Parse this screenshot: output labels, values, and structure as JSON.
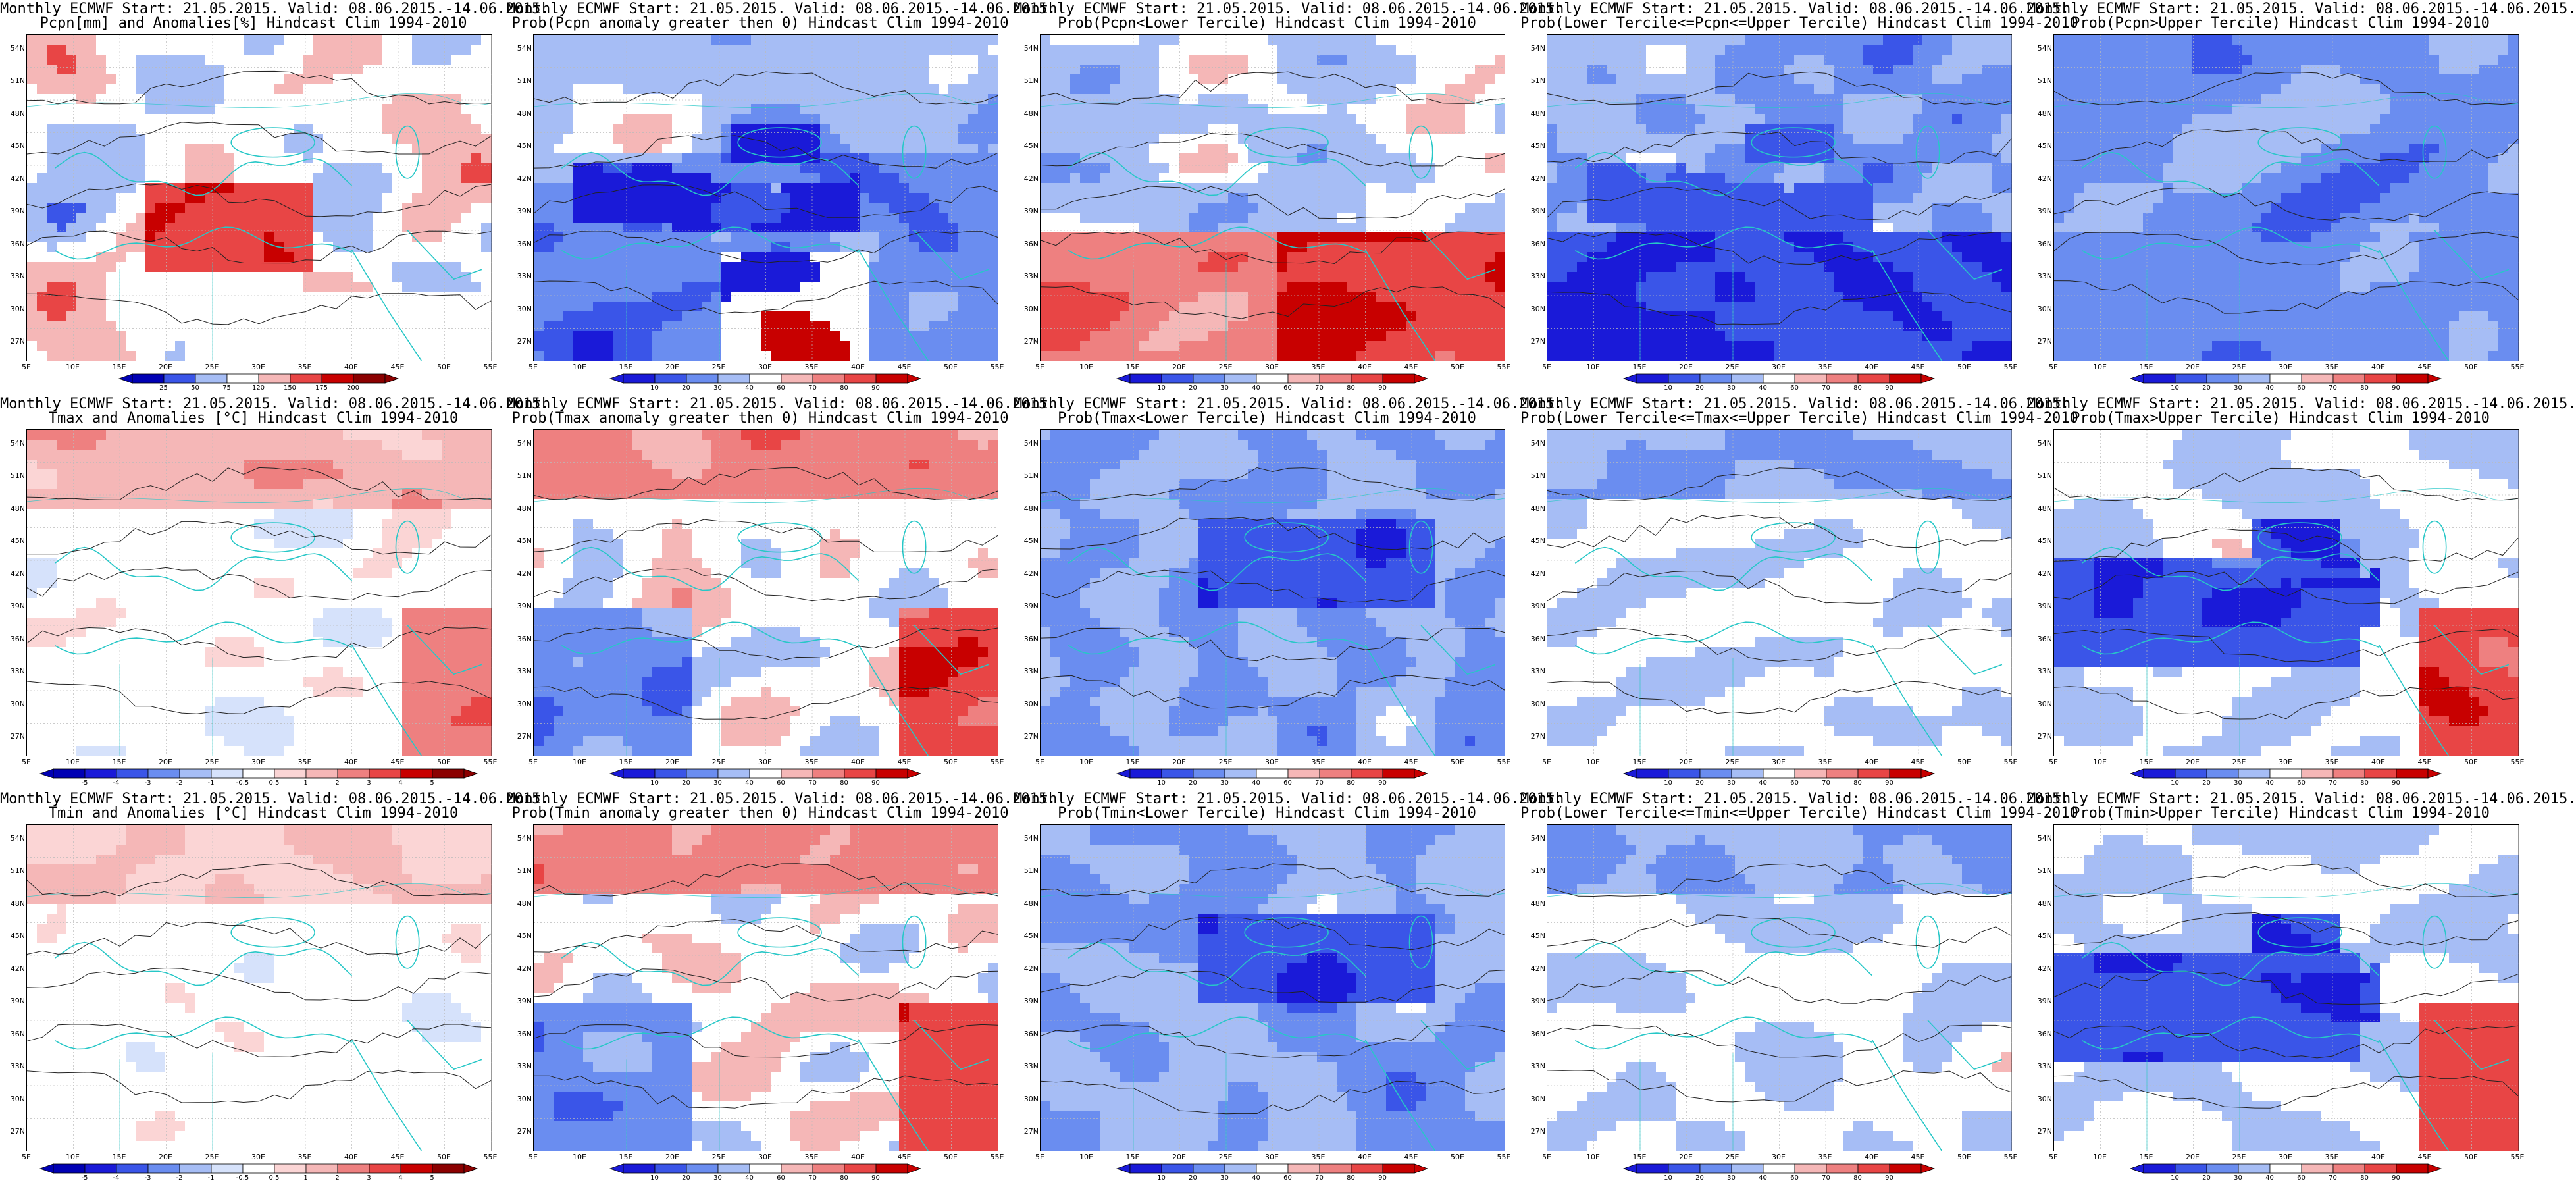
{
  "figure": {
    "panels": [
      {
        "row": 0,
        "col": 0,
        "line1": "Monthly ECMWF Start: 21.05.2015. Valid: 08.06.2015.-14.06.2015.",
        "line2": "Pcpn[mm] and Anomalies[%] Hindcast Clim 1994-2010",
        "field": "precip_anom",
        "colorbar": "pcp"
      },
      {
        "row": 0,
        "col": 1,
        "line1": "Monthly ECMWF Start: 21.05.2015. Valid: 08.06.2015.-14.06.2015.",
        "line2": "Prob(Pcpn anomaly greater then 0) Hindcast Clim 1994-2010",
        "field": "prob_pcp_pos",
        "colorbar": "prob"
      },
      {
        "row": 0,
        "col": 2,
        "line1": "Monthly ECMWF Start: 21.05.2015. Valid: 08.06.2015.-14.06.2015.",
        "line2": "Prob(Pcpn<Lower Tercile) Hindcast Clim 1994-2010",
        "field": "prob_pcp_low",
        "colorbar": "prob"
      },
      {
        "row": 0,
        "col": 3,
        "line1": "Monthly ECMWF Start: 21.05.2015. Valid: 08.06.2015.-14.06.2015.",
        "line2": "Prob(Lower Tercile<=Pcpn<=Upper Tercile) Hindcast Clim 1994-2010",
        "field": "prob_pcp_mid",
        "colorbar": "prob"
      },
      {
        "row": 0,
        "col": 4,
        "line1": "Monthly ECMWF Start: 21.05.2015. Valid: 08.06.2015.-14.06.2015.",
        "line2": "Prob(Pcpn>Upper Tercile) Hindcast Clim 1994-2010",
        "field": "prob_pcp_up",
        "colorbar": "prob"
      },
      {
        "row": 1,
        "col": 0,
        "line1": "Monthly ECMWF Start: 21.05.2015. Valid: 08.06.2015.-14.06.2015.",
        "line2": "Tmax and Anomalies [°C] Hindcast Clim 1994-2010",
        "field": "temp_anom_warm",
        "colorbar": "temp"
      },
      {
        "row": 1,
        "col": 1,
        "line1": "Monthly ECMWF Start: 21.05.2015. Valid: 08.06.2015.-14.06.2015.",
        "line2": "Prob(Tmax anomaly greater then 0) Hindcast Clim 1994-2010",
        "field": "prob_warm_mixed",
        "colorbar": "prob"
      },
      {
        "row": 1,
        "col": 2,
        "line1": "Monthly ECMWF Start: 21.05.2015. Valid: 08.06.2015.-14.06.2015.",
        "line2": "Prob(Tmax<Lower Tercile) Hindcast Clim 1994-2010",
        "field": "prob_cold",
        "colorbar": "prob"
      },
      {
        "row": 1,
        "col": 3,
        "line1": "Monthly ECMWF Start: 21.05.2015. Valid: 08.06.2015.-14.06.2015.",
        "line2": "Prob(Lower Tercile<=Tmax<=Upper Tercile) Hindcast Clim 1994-2010",
        "field": "prob_mid_light",
        "colorbar": "prob"
      },
      {
        "row": 1,
        "col": 4,
        "line1": "Monthly ECMWF Start: 21.05.2015. Valid: 08.06.2015.-14.06.2015.",
        "line2": "Prob(Tmax>Upper Tercile) Hindcast Clim 1994-2010",
        "field": "prob_up_temp",
        "colorbar": "prob"
      },
      {
        "row": 2,
        "col": 0,
        "line1": "Monthly ECMWF Start: 21.05.2015. Valid: 08.06.2015.-14.06.2015.",
        "line2": "Tmin and Anomalies [°C] Hindcast Clim 1994-2010",
        "field": "temp_anom_mild",
        "colorbar": "temp"
      },
      {
        "row": 2,
        "col": 1,
        "line1": "Monthly ECMWF Start: 21.05.2015. Valid: 08.06.2015.-14.06.2015.",
        "line2": "Prob(Tmin anomaly greater then 0) Hindcast Clim 1994-2010",
        "field": "prob_warm_mixed",
        "colorbar": "prob"
      },
      {
        "row": 2,
        "col": 2,
        "line1": "Monthly ECMWF Start: 21.05.2015. Valid: 08.06.2015.-14.06.2015.",
        "line2": "Prob(Tmin<Lower Tercile) Hindcast Clim 1994-2010",
        "field": "prob_cold",
        "colorbar": "prob"
      },
      {
        "row": 2,
        "col": 3,
        "line1": "Monthly ECMWF Start: 21.05.2015. Valid: 08.06.2015.-14.06.2015.",
        "line2": "Prob(Lower Tercile<=Tmin<=Upper Tercile) Hindcast Clim 1994-2010",
        "field": "prob_mid_light",
        "colorbar": "prob"
      },
      {
        "row": 2,
        "col": 4,
        "line1": "Monthly ECMWF Start: 21.05.2015. Valid: 08.06.2015.-14.06.2015.",
        "line2": "Prob(Tmin>Upper Tercile) Hindcast Clim 1994-2010",
        "field": "prob_up_temp",
        "colorbar": "prob"
      }
    ],
    "axes": {
      "lat_labels": [
        "54N",
        "51N",
        "48N",
        "45N",
        "42N",
        "39N",
        "36N",
        "33N",
        "30N",
        "27N"
      ],
      "lon_labels": [
        "5E",
        "10E",
        "15E",
        "20E",
        "25E",
        "30E",
        "35E",
        "40E",
        "45E",
        "50E",
        "55E"
      ],
      "lat_range": [
        25,
        55
      ],
      "lon_range": [
        5,
        55
      ]
    },
    "colorbars": {
      "prob": {
        "labels": [
          "10",
          "20",
          "30",
          "40",
          "60",
          "70",
          "80",
          "90"
        ],
        "colors": [
          "#1a1ad8",
          "#3a55e8",
          "#6a8df0",
          "#a6bdf5",
          "#ffffff",
          "#f5b7b7",
          "#ee8080",
          "#e84545",
          "#c80000"
        ]
      },
      "temp": {
        "labels": [
          "-5",
          "-4",
          "-3",
          "-2",
          "-1",
          "-0.5",
          "0.5",
          "1",
          "2",
          "3",
          "4",
          "5"
        ],
        "colors": [
          "#0000b4",
          "#1a1ad8",
          "#3a55e8",
          "#6a8df0",
          "#a6bdf5",
          "#d6e2fb",
          "#ffffff",
          "#fbd5d5",
          "#f5b7b7",
          "#ee8080",
          "#e84545",
          "#c80000",
          "#8b0000"
        ]
      },
      "pcp": {
        "labels": [
          "25",
          "50",
          "75",
          "120",
          "150",
          "175",
          "200"
        ],
        "colors": [
          "#0000b4",
          "#3a55e8",
          "#a6bdf5",
          "#ffffff",
          "#f5b7b7",
          "#e84545",
          "#c80000",
          "#8b0000"
        ]
      }
    },
    "line_colors": {
      "coast": "#27c7c7",
      "contour": "#222222",
      "grid": "#bbbbbb"
    }
  }
}
